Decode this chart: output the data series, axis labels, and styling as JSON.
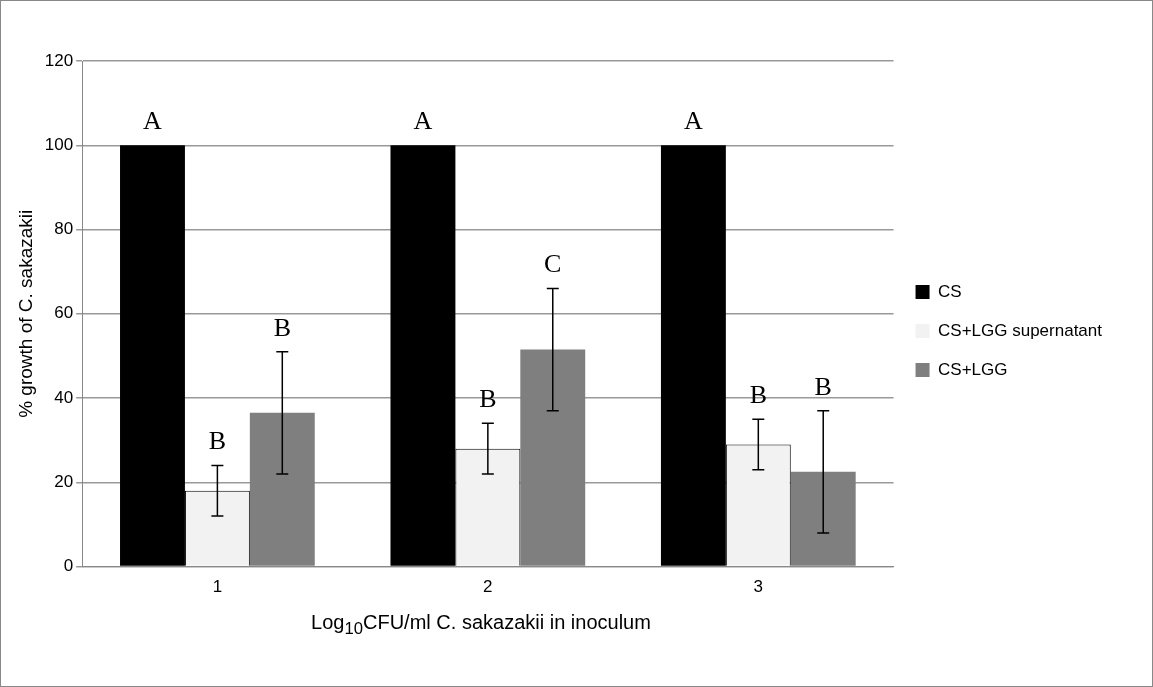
{
  "chart_data": {
    "type": "bar",
    "xlabel": "Log$_{10}$CFU/ml C. sakazakii in inoculum",
    "ylabel": "% growth of C. sakazakii",
    "categories": [
      "1",
      "2",
      "3"
    ],
    "series": [
      {
        "name": "CS",
        "color": "#000000",
        "values": [
          100,
          100,
          100
        ]
      },
      {
        "name": "CS+LGG supernatant",
        "color": "#f2f2f2",
        "values": [
          18,
          28,
          29
        ],
        "errors": [
          6,
          6,
          6
        ]
      },
      {
        "name": "CS+LGG",
        "color": "#7f7f7f",
        "values": [
          36.5,
          51.5,
          22.5
        ],
        "errors": [
          14.5,
          14.5,
          14.5
        ]
      }
    ],
    "annotations": [
      "A",
      "B",
      "B",
      "A",
      "B",
      "C",
      "A",
      "B",
      "B"
    ],
    "ylim": [
      0,
      120
    ],
    "yticks": [
      0,
      20,
      40,
      60,
      80,
      100,
      120
    ],
    "grid": "y",
    "legend": "right"
  }
}
